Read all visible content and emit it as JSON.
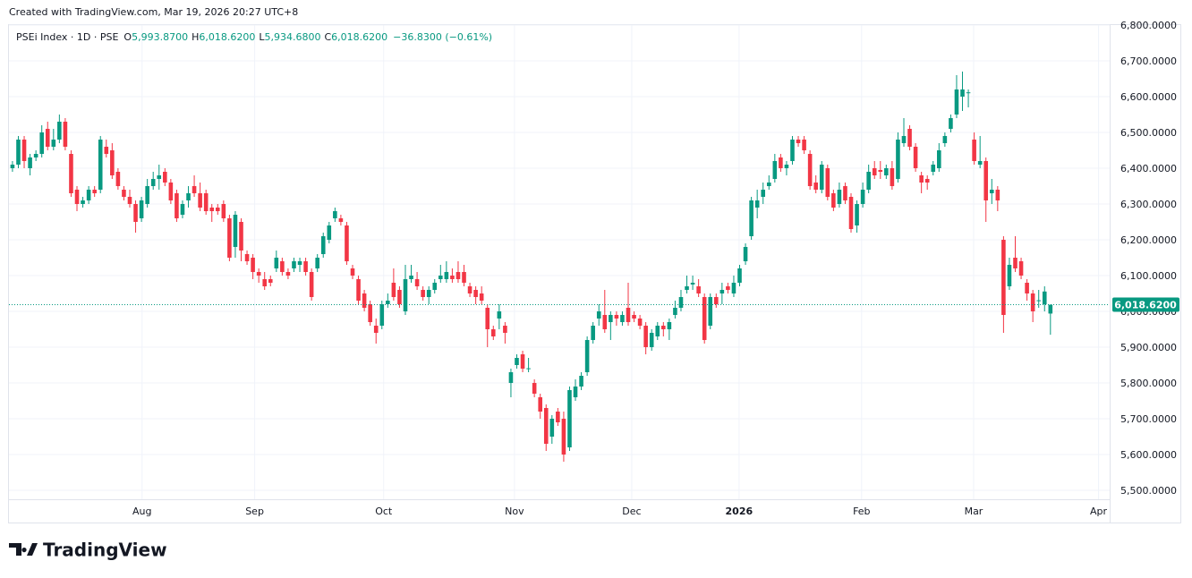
{
  "header": {
    "created": "Created with TradingView.com, Mar 19, 2026 20:27 UTC+8"
  },
  "footer": {
    "brand": "TradingView"
  },
  "chart_data": {
    "type": "candlestick",
    "title": "PSEi Index · 1D · PSE",
    "legend": [
      {
        "key": "O",
        "value": "5,993.8700"
      },
      {
        "key": "H",
        "value": "6,018.6200"
      },
      {
        "key": "L",
        "value": "5,934.6800"
      },
      {
        "key": "C",
        "value": "6,018.6200"
      }
    ],
    "change": "−36.8300 (−0.61%)",
    "up_color": "#089981",
    "down_color": "#f23645",
    "grid": true,
    "last_price": {
      "value": 6018.62,
      "label": "6,018.6200"
    },
    "xlim": [
      -0.6,
      187.1
    ],
    "xticks": [
      {
        "value": 22.1,
        "label": "Aug"
      },
      {
        "value": 41.3,
        "label": "Sep"
      },
      {
        "value": 63.3,
        "label": "Oct"
      },
      {
        "value": 85.6,
        "label": "Nov"
      },
      {
        "value": 105.6,
        "label": "Dec"
      },
      {
        "value": 123.9,
        "label": "2026"
      },
      {
        "value": 144.8,
        "label": "Feb"
      },
      {
        "value": 163.9,
        "label": "Mar"
      },
      {
        "value": 185.2,
        "label": "Apr"
      }
    ],
    "ylim": [
      5475,
      6800
    ],
    "yticks": [
      {
        "value": 5500,
        "label": "5,500.0000"
      },
      {
        "value": 5600,
        "label": "5,600.0000"
      },
      {
        "value": 5700,
        "label": "5,700.0000"
      },
      {
        "value": 5800,
        "label": "5,800.0000"
      },
      {
        "value": 5900,
        "label": "5,900.0000"
      },
      {
        "value": 6000,
        "label": "6,000.0000"
      },
      {
        "value": 6100,
        "label": "6,100.0000"
      },
      {
        "value": 6200,
        "label": "6,200.0000"
      },
      {
        "value": 6300,
        "label": "6,300.0000"
      },
      {
        "value": 6400,
        "label": "6,400.0000"
      },
      {
        "value": 6500,
        "label": "6,500.0000"
      },
      {
        "value": 6600,
        "label": "6,600.0000"
      },
      {
        "value": 6700,
        "label": "6,700.0000"
      },
      {
        "value": 6800,
        "label": "6,800.0000"
      }
    ],
    "ohlc": [
      [
        6400,
        6420,
        6390,
        6410
      ],
      [
        6410,
        6490,
        6400,
        6480
      ],
      [
        6480,
        6490,
        6400,
        6420
      ],
      [
        6400,
        6440,
        6380,
        6430
      ],
      [
        6430,
        6450,
        6420,
        6440
      ],
      [
        6440,
        6520,
        6430,
        6500
      ],
      [
        6510,
        6530,
        6450,
        6460
      ],
      [
        6460,
        6510,
        6450,
        6480
      ],
      [
        6480,
        6550,
        6470,
        6530
      ],
      [
        6530,
        6540,
        6450,
        6460
      ],
      [
        6440,
        6450,
        6320,
        6330
      ],
      [
        6340,
        6350,
        6280,
        6300
      ],
      [
        6300,
        6320,
        6290,
        6310
      ],
      [
        6310,
        6350,
        6300,
        6340
      ],
      [
        6340,
        6350,
        6320,
        6330
      ],
      [
        6340,
        6490,
        6330,
        6480
      ],
      [
        6460,
        6480,
        6430,
        6440
      ],
      [
        6450,
        6470,
        6370,
        6380
      ],
      [
        6390,
        6400,
        6340,
        6350
      ],
      [
        6340,
        6350,
        6310,
        6320
      ],
      [
        6320,
        6340,
        6290,
        6300
      ],
      [
        6300,
        6310,
        6220,
        6250
      ],
      [
        6260,
        6320,
        6250,
        6310
      ],
      [
        6300,
        6370,
        6290,
        6350
      ],
      [
        6350,
        6390,
        6340,
        6370
      ],
      [
        6370,
        6410,
        6340,
        6380
      ],
      [
        6390,
        6400,
        6350,
        6360
      ],
      [
        6360,
        6370,
        6300,
        6310
      ],
      [
        6330,
        6340,
        6250,
        6260
      ],
      [
        6270,
        6310,
        6260,
        6300
      ],
      [
        6310,
        6350,
        6290,
        6330
      ],
      [
        6350,
        6380,
        6320,
        6330
      ],
      [
        6330,
        6360,
        6280,
        6290
      ],
      [
        6330,
        6340,
        6270,
        6280
      ],
      [
        6290,
        6300,
        6250,
        6280
      ],
      [
        6290,
        6300,
        6270,
        6280
      ],
      [
        6300,
        6310,
        6250,
        6260
      ],
      [
        6260,
        6270,
        6140,
        6150
      ],
      [
        6180,
        6280,
        6150,
        6270
      ],
      [
        6250,
        6260,
        6140,
        6170
      ],
      [
        6160,
        6170,
        6130,
        6140
      ],
      [
        6150,
        6160,
        6090,
        6110
      ],
      [
        6110,
        6120,
        6080,
        6100
      ],
      [
        6090,
        6110,
        6060,
        6070
      ],
      [
        6090,
        6100,
        6070,
        6080
      ],
      [
        6120,
        6170,
        6110,
        6150
      ],
      [
        6140,
        6150,
        6100,
        6110
      ],
      [
        6110,
        6120,
        6090,
        6100
      ],
      [
        6120,
        6150,
        6110,
        6140
      ],
      [
        6130,
        6150,
        6110,
        6140
      ],
      [
        6140,
        6150,
        6100,
        6110
      ],
      [
        6110,
        6120,
        6030,
        6040
      ],
      [
        6120,
        6160,
        6110,
        6150
      ],
      [
        6160,
        6220,
        6150,
        6210
      ],
      [
        6200,
        6250,
        6190,
        6240
      ],
      [
        6260,
        6290,
        6250,
        6280
      ],
      [
        6260,
        6270,
        6240,
        6250
      ],
      [
        6240,
        6250,
        6130,
        6140
      ],
      [
        6120,
        6130,
        6090,
        6100
      ],
      [
        6090,
        6100,
        6020,
        6030
      ],
      [
        6050,
        6060,
        6000,
        6010
      ],
      [
        6020,
        6030,
        5960,
        5970
      ],
      [
        5960,
        5980,
        5910,
        5940
      ],
      [
        5960,
        6030,
        5950,
        6020
      ],
      [
        6020,
        6050,
        6010,
        6030
      ],
      [
        6080,
        6120,
        6030,
        6040
      ],
      [
        6060,
        6070,
        6010,
        6020
      ],
      [
        6000,
        6130,
        5990,
        6090
      ],
      [
        6090,
        6130,
        6080,
        6100
      ],
      [
        6090,
        6110,
        6060,
        6070
      ],
      [
        6060,
        6070,
        6030,
        6040
      ],
      [
        6040,
        6070,
        6020,
        6060
      ],
      [
        6060,
        6090,
        6050,
        6080
      ],
      [
        6090,
        6130,
        6080,
        6100
      ],
      [
        6090,
        6140,
        6080,
        6110
      ],
      [
        6100,
        6120,
        6080,
        6090
      ],
      [
        6110,
        6140,
        6080,
        6090
      ],
      [
        6110,
        6130,
        6070,
        6080
      ],
      [
        6070,
        6080,
        6040,
        6050
      ],
      [
        6060,
        6070,
        6020,
        6040
      ],
      [
        6050,
        6070,
        6020,
        6030
      ],
      [
        6010,
        6020,
        5900,
        5950
      ],
      [
        5950,
        5960,
        5920,
        5930
      ],
      [
        5980,
        6020,
        5950,
        6000
      ],
      [
        5960,
        5970,
        5910,
        5940
      ],
      [
        5800,
        5840,
        5760,
        5830
      ],
      [
        5850,
        5880,
        5840,
        5870
      ],
      [
        5880,
        5890,
        5830,
        5840
      ],
      [
        5840,
        5870,
        5830,
        5841
      ],
      [
        5800,
        5810,
        5760,
        5770
      ],
      [
        5760,
        5770,
        5700,
        5720
      ],
      [
        5730,
        5740,
        5610,
        5630
      ],
      [
        5650,
        5710,
        5630,
        5700
      ],
      [
        5720,
        5730,
        5680,
        5690
      ],
      [
        5700,
        5720,
        5580,
        5600
      ],
      [
        5620,
        5790,
        5610,
        5780
      ],
      [
        5760,
        5810,
        5750,
        5790
      ],
      [
        5790,
        5830,
        5780,
        5820
      ],
      [
        5830,
        5930,
        5820,
        5920
      ],
      [
        5920,
        5970,
        5910,
        5960
      ],
      [
        5980,
        6020,
        5960,
        6000
      ],
      [
        5990,
        6060,
        5940,
        5950
      ],
      [
        5970,
        6000,
        5920,
        5990
      ],
      [
        5990,
        6000,
        5960,
        5980
      ],
      [
        5970,
        6000,
        5960,
        5990
      ],
      [
        6010,
        6080,
        5960,
        5970
      ],
      [
        5990,
        6000,
        5970,
        5980
      ],
      [
        5980,
        5990,
        5950,
        5960
      ],
      [
        5960,
        5970,
        5880,
        5900
      ],
      [
        5900,
        5950,
        5890,
        5940
      ],
      [
        5930,
        5970,
        5920,
        5960
      ],
      [
        5960,
        5970,
        5930,
        5950
      ],
      [
        5950,
        5980,
        5920,
        5970
      ],
      [
        5990,
        6030,
        5980,
        6010
      ],
      [
        6010,
        6060,
        6000,
        6040
      ],
      [
        6060,
        6100,
        6050,
        6070
      ],
      [
        6075,
        6100,
        6060,
        6080
      ],
      [
        6070,
        6090,
        6040,
        6050
      ],
      [
        6040,
        6050,
        5910,
        5920
      ],
      [
        5960,
        6050,
        5950,
        6040
      ],
      [
        6040,
        6050,
        6010,
        6020
      ],
      [
        6050,
        6080,
        6020,
        6060
      ],
      [
        6070,
        6080,
        6050,
        6060
      ],
      [
        6050,
        6100,
        6040,
        6080
      ],
      [
        6080,
        6130,
        6070,
        6120
      ],
      [
        6140,
        6190,
        6130,
        6180
      ],
      [
        6210,
        6320,
        6200,
        6310
      ],
      [
        6290,
        6340,
        6260,
        6310
      ],
      [
        6320,
        6360,
        6300,
        6340
      ],
      [
        6350,
        6380,
        6340,
        6360
      ],
      [
        6370,
        6440,
        6360,
        6420
      ],
      [
        6430,
        6440,
        6390,
        6400
      ],
      [
        6400,
        6420,
        6380,
        6410
      ],
      [
        6420,
        6490,
        6410,
        6480
      ],
      [
        6480,
        6490,
        6460,
        6470
      ],
      [
        6480,
        6490,
        6440,
        6450
      ],
      [
        6440,
        6450,
        6340,
        6350
      ],
      [
        6360,
        6380,
        6330,
        6340
      ],
      [
        6340,
        6420,
        6330,
        6410
      ],
      [
        6400,
        6410,
        6310,
        6320
      ],
      [
        6330,
        6340,
        6280,
        6290
      ],
      [
        6300,
        6360,
        6290,
        6340
      ],
      [
        6350,
        6360,
        6300,
        6310
      ],
      [
        6320,
        6330,
        6220,
        6230
      ],
      [
        6240,
        6310,
        6220,
        6300
      ],
      [
        6300,
        6360,
        6290,
        6340
      ],
      [
        6340,
        6410,
        6330,
        6390
      ],
      [
        6400,
        6420,
        6370,
        6380
      ],
      [
        6395,
        6420,
        6370,
        6390
      ],
      [
        6380,
        6410,
        6370,
        6400
      ],
      [
        6400,
        6420,
        6340,
        6350
      ],
      [
        6370,
        6500,
        6360,
        6480
      ],
      [
        6470,
        6540,
        6460,
        6490
      ],
      [
        6510,
        6520,
        6450,
        6460
      ],
      [
        6460,
        6470,
        6390,
        6400
      ],
      [
        6380,
        6390,
        6330,
        6360
      ],
      [
        6370,
        6380,
        6340,
        6360
      ],
      [
        6390,
        6420,
        6380,
        6410
      ],
      [
        6400,
        6470,
        6390,
        6450
      ],
      [
        6470,
        6500,
        6460,
        6490
      ],
      [
        6510,
        6550,
        6500,
        6540
      ],
      [
        6550,
        6660,
        6540,
        6620
      ],
      [
        6600,
        6670,
        6560,
        6620
      ],
      [
        6610,
        6620,
        6570,
        6612
      ],
      [
        6480,
        6500,
        6410,
        6420
      ],
      [
        6410,
        6490,
        6400,
        6420
      ],
      [
        6420,
        6430,
        6250,
        6310
      ],
      [
        6330,
        6370,
        6300,
        6340
      ],
      [
        6340,
        6350,
        6280,
        6310
      ],
      [
        6200,
        6210,
        5940,
        5990
      ],
      [
        6070,
        6150,
        6060,
        6130
      ],
      [
        6150,
        6210,
        6110,
        6120
      ],
      [
        6140,
        6150,
        6090,
        6100
      ],
      [
        6080,
        6090,
        6030,
        6050
      ],
      [
        6050,
        6060,
        5970,
        6000
      ],
      [
        6030,
        6060,
        6010,
        6031
      ],
      [
        6020,
        6070,
        6000,
        6055.45
      ],
      [
        5993.87,
        6018.62,
        5934.68,
        6018.62
      ]
    ]
  }
}
